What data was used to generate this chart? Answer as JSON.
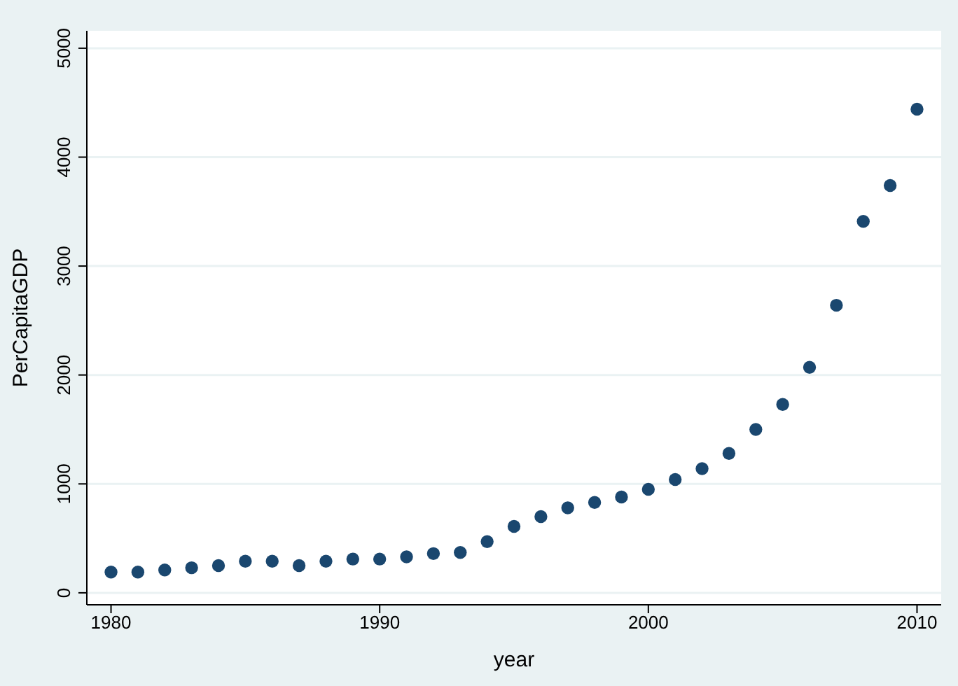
{
  "chart_data": {
    "type": "scatter",
    "xlabel": "year",
    "ylabel": "PerCapitaGDP",
    "x": [
      1980,
      1981,
      1982,
      1983,
      1984,
      1985,
      1986,
      1987,
      1988,
      1989,
      1990,
      1991,
      1992,
      1993,
      1994,
      1995,
      1996,
      1997,
      1998,
      1999,
      2000,
      2001,
      2002,
      2003,
      2004,
      2005,
      2006,
      2007,
      2008,
      2009,
      2010
    ],
    "series": [
      {
        "color": "#1a476f",
        "values": [
          190,
          190,
          210,
          230,
          250,
          290,
          290,
          250,
          290,
          310,
          310,
          330,
          360,
          370,
          470,
          610,
          700,
          780,
          830,
          880,
          950,
          1040,
          1140,
          1280,
          1500,
          1730,
          2070,
          2640,
          3410,
          3740,
          4440
        ]
      }
    ],
    "xlim": [
      1979.1,
      2010.9
    ],
    "xticks": [
      1980,
      1990,
      2000,
      2010
    ],
    "ylim": [
      -110,
      5160
    ],
    "yticks": [
      0,
      1000,
      2000,
      3000,
      4000,
      5000
    ],
    "grid": "y",
    "marker": "circle",
    "legend": false
  }
}
